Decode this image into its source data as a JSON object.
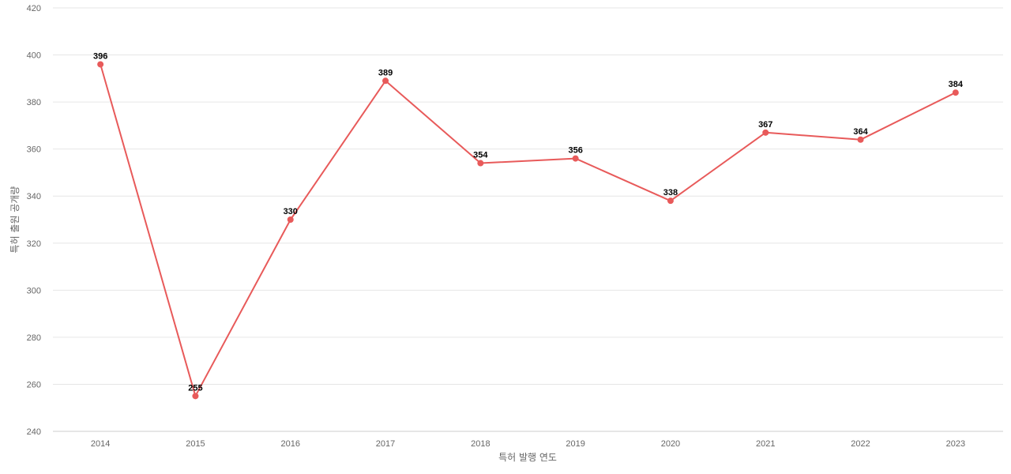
{
  "chart_data": {
    "type": "line",
    "title": "",
    "xlabel": "특허 발행 연도",
    "ylabel": "특허 출원 공개량",
    "categories": [
      "2014",
      "2015",
      "2016",
      "2017",
      "2018",
      "2019",
      "2020",
      "2021",
      "2022",
      "2023"
    ],
    "series": [
      {
        "values": [
          396,
          255,
          330,
          389,
          354,
          356,
          338,
          367,
          364,
          384
        ],
        "color": "#e85a5a"
      }
    ],
    "ylim": [
      240,
      420
    ],
    "yticks": [
      "240",
      "260",
      "280",
      "300",
      "320",
      "340",
      "360",
      "380",
      "400",
      "420"
    ],
    "grid": true,
    "legend": "none"
  }
}
